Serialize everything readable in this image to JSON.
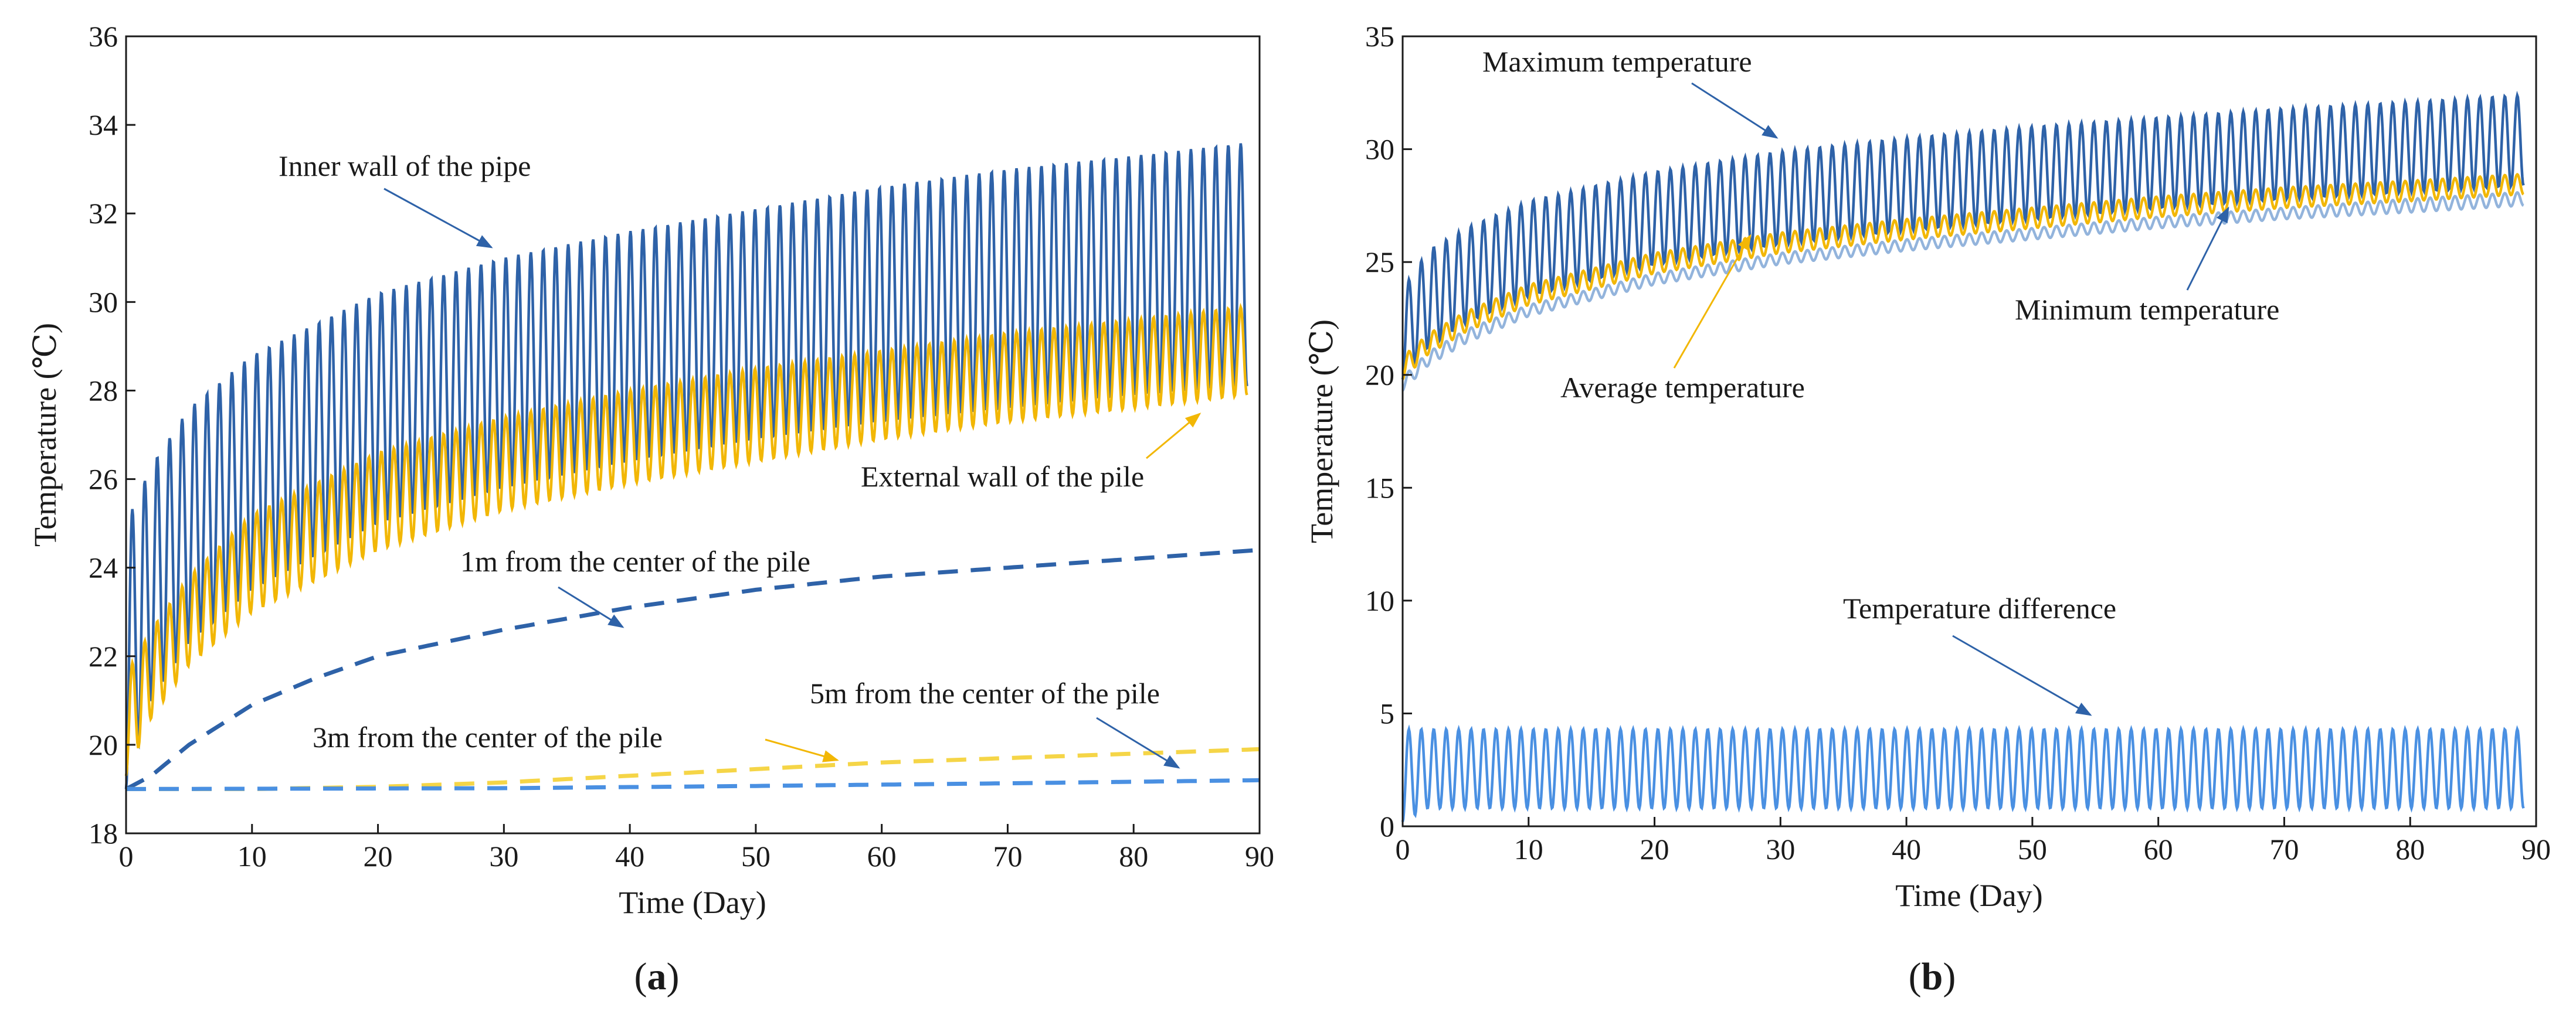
{
  "chart_data": [
    {
      "id": "a",
      "type": "line",
      "caption": "a",
      "xlabel": "Time (Day)",
      "ylabel": "Temperature (℃)",
      "xlim": [
        0,
        90
      ],
      "ylim": [
        18,
        36
      ],
      "xticks": [
        0,
        10,
        20,
        30,
        40,
        50,
        60,
        70,
        80,
        90
      ],
      "yticks": [
        18,
        20,
        22,
        24,
        26,
        28,
        30,
        32,
        34,
        36
      ],
      "grid": false,
      "cycles": 90,
      "series": [
        {
          "name": "Inner wall of the pipe",
          "style": "oscillating",
          "color": "#2e62a8",
          "x": [
            0,
            2,
            5,
            10,
            20,
            30,
            40,
            50,
            60,
            70,
            80,
            89
          ],
          "max": [
            25.0,
            26.3,
            27.6,
            28.8,
            30.2,
            31.0,
            31.6,
            32.1,
            32.6,
            33.0,
            33.3,
            33.6
          ],
          "min": [
            19.0,
            21.0,
            22.3,
            23.5,
            25.0,
            25.8,
            26.4,
            26.9,
            27.3,
            27.6,
            27.9,
            28.1
          ]
        },
        {
          "name": "External wall of the pile",
          "style": "oscillating",
          "color": "#f2b705",
          "x": [
            0,
            2,
            5,
            10,
            20,
            30,
            40,
            50,
            60,
            70,
            80,
            89
          ],
          "max": [
            21.6,
            22.6,
            23.8,
            25.2,
            26.6,
            27.4,
            28.0,
            28.5,
            28.9,
            29.3,
            29.6,
            29.9
          ],
          "min": [
            19.3,
            20.6,
            21.8,
            23.0,
            24.4,
            25.3,
            25.9,
            26.4,
            26.9,
            27.3,
            27.6,
            27.9
          ]
        },
        {
          "name": "1m from the center of the pile",
          "style": "dashed",
          "color": "#2e62a8",
          "x": [
            0,
            2,
            5,
            10,
            15,
            20,
            30,
            40,
            50,
            60,
            70,
            80,
            90
          ],
          "values": [
            19.0,
            19.3,
            20.0,
            20.9,
            21.5,
            22.0,
            22.6,
            23.1,
            23.5,
            23.8,
            24.0,
            24.2,
            24.4
          ]
        },
        {
          "name": "3m from the center of the pile",
          "style": "dashed",
          "color": "#f5d547",
          "x": [
            0,
            10,
            20,
            30,
            40,
            50,
            60,
            70,
            80,
            90
          ],
          "values": [
            19.0,
            19.0,
            19.05,
            19.15,
            19.3,
            19.45,
            19.6,
            19.7,
            19.8,
            19.9
          ]
        },
        {
          "name": "5m from the center of the pile",
          "style": "dashed",
          "color": "#4a90e2",
          "x": [
            0,
            30,
            50,
            70,
            90
          ],
          "values": [
            19.0,
            19.02,
            19.07,
            19.13,
            19.2
          ]
        }
      ],
      "annotations": [
        {
          "text": "Inner wall of the pipe",
          "target": [
            30,
            31.2
          ]
        },
        {
          "text": "External wall of the pile",
          "target": [
            85,
            28.0
          ]
        },
        {
          "text": "1m from the center of the pile",
          "target": [
            40,
            22.6
          ]
        },
        {
          "text": "3m from the center of the pile",
          "target": [
            56,
            19.6
          ]
        },
        {
          "text": "5m from the center of the pile",
          "target": [
            83,
            19.2
          ]
        }
      ]
    },
    {
      "id": "b",
      "type": "line",
      "caption": "b",
      "xlabel": "Time (Day)",
      "ylabel": "Temperature (℃)",
      "xlim": [
        0,
        90
      ],
      "ylim": [
        0,
        35
      ],
      "xticks": [
        0,
        10,
        20,
        30,
        40,
        50,
        60,
        70,
        80,
        90
      ],
      "yticks": [
        0,
        5,
        10,
        15,
        20,
        25,
        30,
        35
      ],
      "grid": false,
      "cycles": 90,
      "series": [
        {
          "name": "Maximum temperature",
          "style": "oscillating",
          "color": "#2e62a8",
          "x": [
            0,
            2,
            5,
            10,
            20,
            30,
            40,
            50,
            60,
            70,
            80,
            89
          ],
          "max": [
            23.8,
            25.5,
            26.5,
            27.7,
            29.0,
            29.9,
            30.5,
            31.0,
            31.4,
            31.8,
            32.1,
            32.4
          ],
          "min": [
            19.8,
            21.2,
            22.3,
            23.5,
            24.9,
            25.8,
            26.4,
            26.9,
            27.4,
            27.8,
            28.1,
            28.4
          ]
        },
        {
          "name": "Average temperature",
          "style": "oscillating",
          "color": "#f2b705",
          "x": [
            0,
            2,
            5,
            10,
            20,
            30,
            40,
            50,
            60,
            70,
            80,
            89
          ],
          "max": [
            20.8,
            21.8,
            22.8,
            24.0,
            25.4,
            26.3,
            26.9,
            27.4,
            27.9,
            28.3,
            28.6,
            28.9
          ],
          "min": [
            19.8,
            20.9,
            21.9,
            23.1,
            24.5,
            25.4,
            26.0,
            26.5,
            27.0,
            27.4,
            27.7,
            28.0
          ]
        },
        {
          "name": "Minimum temperature",
          "style": "oscillating",
          "color": "#93b4dc",
          "x": [
            0,
            2,
            5,
            10,
            20,
            30,
            40,
            50,
            60,
            70,
            80,
            89
          ],
          "max": [
            19.9,
            21.0,
            22.0,
            23.1,
            24.5,
            25.4,
            26.0,
            26.5,
            27.0,
            27.4,
            27.8,
            28.1
          ],
          "min": [
            19.3,
            20.4,
            21.4,
            22.6,
            24.0,
            24.9,
            25.5,
            26.0,
            26.5,
            26.9,
            27.2,
            27.5
          ]
        },
        {
          "name": "Temperature difference",
          "style": "oscillating",
          "color": "#4a90e2",
          "x": [
            0,
            1,
            2,
            89
          ],
          "max": [
            4.3,
            4.3,
            4.3,
            4.3
          ],
          "min": [
            0.2,
            0.5,
            0.8,
            0.8
          ]
        }
      ],
      "annotations": [
        {
          "text": "Maximum temperature",
          "target": [
            16.8,
            30.2
          ]
        },
        {
          "text": "Average temperature",
          "target": [
            33,
            26.0
          ]
        },
        {
          "text": "Minimum temperature",
          "target": [
            71,
            27.5
          ]
        },
        {
          "text": "Temperature difference",
          "target": [
            55,
            4.8
          ]
        }
      ]
    }
  ]
}
